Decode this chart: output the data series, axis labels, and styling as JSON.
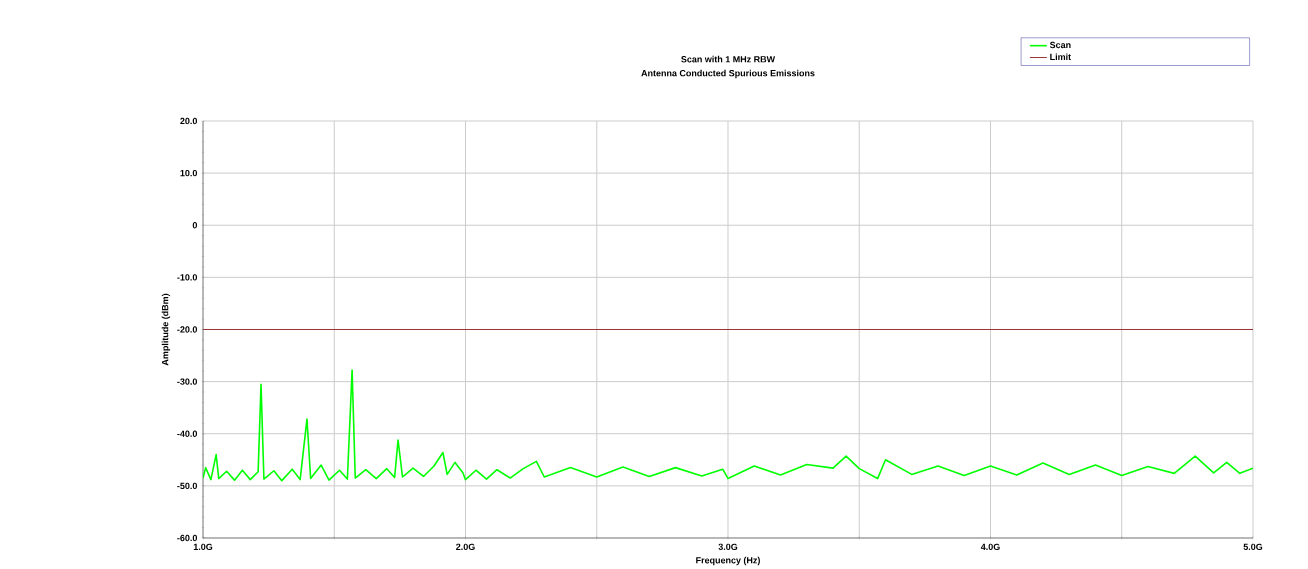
{
  "chart_data": {
    "type": "line",
    "title": "Scan with 1 MHz RBW",
    "subtitle": "Antenna Conducted Spurious Emissions",
    "xlabel": "Frequency (Hz)",
    "ylabel": "Amplitude (dBm)",
    "xlim": [
      1.0,
      5.0
    ],
    "ylim": [
      -60,
      20
    ],
    "xticks": [
      {
        "value": 1.0,
        "label": "1.0G"
      },
      {
        "value": 1.5,
        "label": null
      },
      {
        "value": 2.0,
        "label": "2.0G"
      },
      {
        "value": 2.5,
        "label": null
      },
      {
        "value": 3.0,
        "label": "3.0G"
      },
      {
        "value": 3.5,
        "label": null
      },
      {
        "value": 4.0,
        "label": "4.0G"
      },
      {
        "value": 4.5,
        "label": null
      },
      {
        "value": 5.0,
        "label": "5.0G"
      }
    ],
    "yticks": [
      {
        "value": -60,
        "label": "-60.0"
      },
      {
        "value": -50,
        "label": "-50.0"
      },
      {
        "value": -40,
        "label": "-40.0"
      },
      {
        "value": -30,
        "label": "-30.0"
      },
      {
        "value": -20,
        "label": "-20.0"
      },
      {
        "value": -10,
        "label": "-10.0"
      },
      {
        "value": 0,
        "label": "0"
      },
      {
        "value": 10,
        "label": "10.0"
      },
      {
        "value": 20,
        "label": "20.0"
      }
    ],
    "grid": true,
    "legend": "top right",
    "marker": "none",
    "line_style": "solid",
    "series": [
      {
        "name": "Scan",
        "color": "#00ff00",
        "x": [
          1.0,
          1.01,
          1.03,
          1.05,
          1.06,
          1.09,
          1.12,
          1.15,
          1.18,
          1.21,
          1.221,
          1.232,
          1.27,
          1.3,
          1.34,
          1.37,
          1.396,
          1.41,
          1.45,
          1.48,
          1.52,
          1.55,
          1.568,
          1.58,
          1.62,
          1.66,
          1.7,
          1.73,
          1.743,
          1.76,
          1.8,
          1.84,
          1.88,
          1.914,
          1.93,
          1.96,
          1.99,
          2.0,
          2.04,
          2.08,
          2.12,
          2.17,
          2.22,
          2.27,
          2.3,
          2.4,
          2.5,
          2.6,
          2.7,
          2.8,
          2.9,
          2.98,
          3.0,
          3.1,
          3.2,
          3.3,
          3.4,
          3.45,
          3.5,
          3.57,
          3.6,
          3.7,
          3.8,
          3.9,
          4.0,
          4.1,
          4.2,
          4.3,
          4.4,
          4.5,
          4.6,
          4.7,
          4.78,
          4.85,
          4.9,
          4.95,
          5.0
        ],
        "values": [
          -48.5,
          -46.5,
          -48.8,
          -44.0,
          -48.6,
          -47.2,
          -48.9,
          -47.0,
          -48.8,
          -47.3,
          -30.5,
          -48.7,
          -47.1,
          -49.0,
          -46.8,
          -48.8,
          -37.2,
          -48.6,
          -46.0,
          -48.9,
          -47.0,
          -48.7,
          -27.8,
          -48.5,
          -46.9,
          -48.6,
          -46.7,
          -48.4,
          -41.2,
          -48.3,
          -46.6,
          -48.2,
          -46.2,
          -43.6,
          -47.8,
          -45.5,
          -47.5,
          -48.8,
          -47.0,
          -48.7,
          -46.9,
          -48.5,
          -46.7,
          -45.3,
          -48.3,
          -46.5,
          -48.3,
          -46.4,
          -48.2,
          -46.5,
          -48.1,
          -46.8,
          -48.6,
          -46.2,
          -47.9,
          -45.9,
          -46.6,
          -44.3,
          -46.7,
          -48.6,
          -45.0,
          -47.8,
          -46.2,
          -48.0,
          -46.2,
          -47.9,
          -45.6,
          -47.8,
          -46.0,
          -48.0,
          -46.3,
          -47.6,
          -44.3,
          -47.5,
          -45.5,
          -47.6,
          -46.6
        ]
      },
      {
        "name": "Limit",
        "color": "#993333",
        "x": [
          1.0,
          5.0
        ],
        "values": [
          -20,
          -20
        ]
      }
    ]
  }
}
